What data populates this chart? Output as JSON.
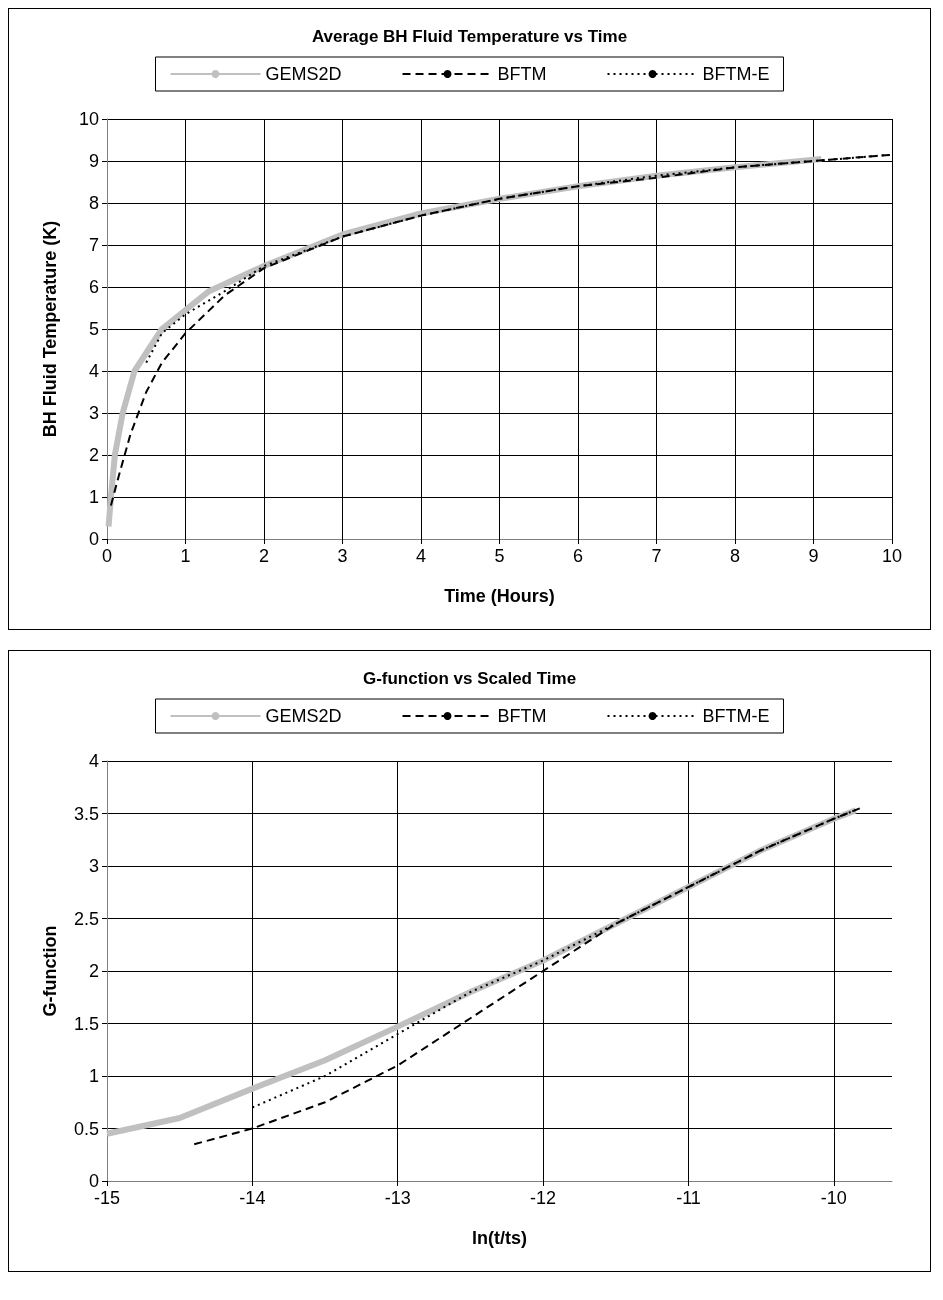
{
  "chart_data": [
    {
      "type": "line",
      "title": "Average BH Fluid Temperature vs Time",
      "xlabel": "Time (Hours)",
      "ylabel": "BH Fluid Temperature (K)",
      "xlim": [
        0,
        10
      ],
      "xticks": [
        0,
        1,
        2,
        3,
        4,
        5,
        6,
        7,
        8,
        9,
        10
      ],
      "ylim": [
        0,
        10
      ],
      "yticks": [
        0,
        1,
        2,
        3,
        4,
        5,
        6,
        7,
        8,
        9,
        10
      ],
      "grid": true,
      "legend": "top",
      "marker": "none",
      "series": [
        {
          "name": "GEMS2D",
          "color": "#c0c0c0",
          "line_style": "solid",
          "x": [
            0.02,
            0.05,
            0.1,
            0.2,
            0.35,
            0.7,
            1.3,
            2,
            3,
            4,
            5,
            6,
            7,
            8,
            9.1
          ],
          "values": [
            0.3,
            1,
            2,
            3,
            4,
            5,
            5.9,
            6.5,
            7.25,
            7.75,
            8.1,
            8.4,
            8.65,
            8.85,
            9.05
          ]
        },
        {
          "name": "BFTM",
          "color": "#000000",
          "line_style": "dashed",
          "x": [
            0.05,
            0.15,
            0.3,
            0.5,
            0.7,
            1,
            1.5,
            2,
            3,
            4,
            5,
            6,
            7,
            8,
            9,
            10
          ],
          "values": [
            0.8,
            1.5,
            2.5,
            3.5,
            4.2,
            4.9,
            5.8,
            6.45,
            7.2,
            7.7,
            8.1,
            8.4,
            8.6,
            8.85,
            9,
            9.15
          ]
        },
        {
          "name": "BFTM-E",
          "color": "#000000",
          "line_style": "dotted",
          "x": [
            0.5,
            0.7,
            1,
            1.5,
            2,
            3,
            4,
            5,
            6,
            7,
            8,
            9,
            10
          ],
          "values": [
            4.2,
            4.9,
            5.35,
            5.9,
            6.5,
            7.2,
            7.7,
            8.1,
            8.4,
            8.65,
            8.85,
            9,
            9.15
          ]
        }
      ]
    },
    {
      "type": "line",
      "title": "G-function vs Scaled Time",
      "xlabel": "ln(t/ts)",
      "ylabel": "G-function",
      "xlim": [
        -15,
        -9.6
      ],
      "xticks": [
        -15,
        -14,
        -13,
        -12,
        -11,
        -10
      ],
      "ylim": [
        0,
        4
      ],
      "yticks": [
        0,
        0.5,
        1,
        1.5,
        2,
        2.5,
        3,
        3.5,
        4
      ],
      "grid": true,
      "legend": "top",
      "marker": "none",
      "series": [
        {
          "name": "GEMS2D",
          "color": "#c0c0c0",
          "line_style": "solid",
          "x": [
            -15,
            -14.5,
            -14,
            -13.5,
            -13,
            -12.5,
            -12,
            -11.5,
            -11,
            -10.5,
            -10,
            -9.85
          ],
          "values": [
            0.45,
            0.6,
            0.88,
            1.15,
            1.47,
            1.8,
            2.1,
            2.45,
            2.8,
            3.15,
            3.45,
            3.53
          ]
        },
        {
          "name": "BFTM",
          "color": "#000000",
          "line_style": "dashed",
          "x": [
            -14.4,
            -14,
            -13.5,
            -13,
            -12.5,
            -12,
            -11.5,
            -11,
            -10.5,
            -10,
            -9.82
          ],
          "values": [
            0.35,
            0.5,
            0.75,
            1.1,
            1.55,
            2,
            2.45,
            2.8,
            3.15,
            3.45,
            3.55
          ]
        },
        {
          "name": "BFTM-E",
          "color": "#000000",
          "line_style": "dotted",
          "x": [
            -14,
            -13.5,
            -13,
            -12.5,
            -12,
            -11.5,
            -11,
            -10.5,
            -10,
            -9.82
          ],
          "values": [
            0.7,
            1,
            1.4,
            1.8,
            2.1,
            2.45,
            2.8,
            3.15,
            3.45,
            3.55
          ]
        }
      ]
    }
  ]
}
